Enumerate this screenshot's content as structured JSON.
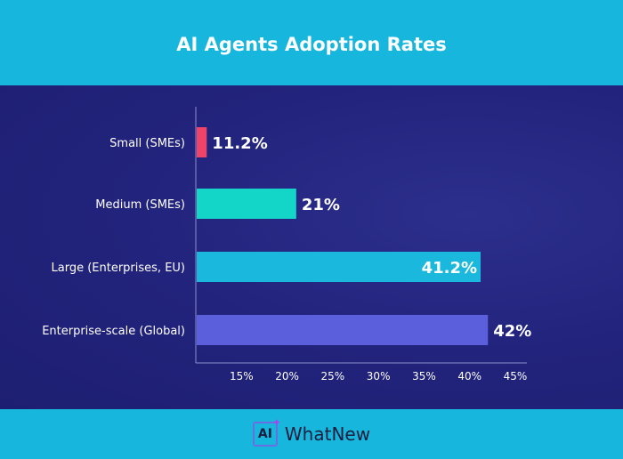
{
  "chart_data": {
    "type": "bar",
    "orientation": "horizontal",
    "title": "AI Agents Adoption Rates",
    "categories": [
      "Small (SMEs)",
      "Medium (SMEs)",
      "Large (Enterprises, EU)",
      "Enterprise-scale (Global)"
    ],
    "values": [
      11.2,
      21,
      41.2,
      42
    ],
    "data_labels": [
      "11.2%",
      "21%",
      "41.2%",
      "42%"
    ],
    "colors": [
      "#f0436a",
      "#14d6c8",
      "#19b8dc",
      "#5b5fdc"
    ],
    "xlim": [
      10,
      45
    ],
    "xticks": [
      15,
      20,
      25,
      30,
      35,
      40,
      45
    ],
    "xtick_labels": [
      "15%",
      "20%",
      "25%",
      "30%",
      "35%",
      "40%",
      "45%"
    ],
    "xlabel": "",
    "ylabel": "",
    "grid": false
  },
  "footer": {
    "logo_mark": "AI",
    "logo_text": "WhatNew"
  }
}
